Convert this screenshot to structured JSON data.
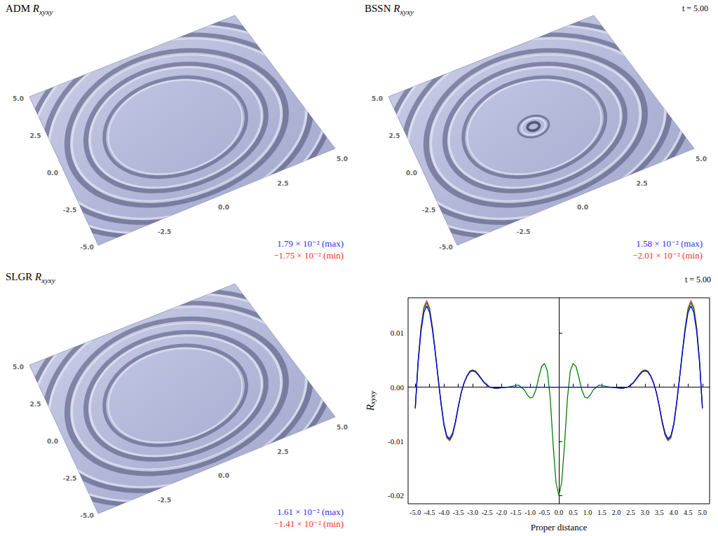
{
  "chart_data": [
    {
      "type": "surface",
      "title": "ADM Rxyxy",
      "xlim": [
        -5,
        5
      ],
      "ylim": [
        -5,
        5
      ],
      "xticks": [
        -2.5,
        {
          "value": 0,
          "label": "0.0"
        },
        2.5,
        {
          "value": 5,
          "label": "5.0"
        }
      ],
      "yticks": [
        {
          "value": 5,
          "label": "5.0"
        },
        2.5,
        {
          "value": 0,
          "label": "0.0"
        },
        -2.5,
        {
          "value": -5,
          "label": "-5.0"
        }
      ],
      "max": {
        "value": 0.0179,
        "label": "1.79 × 10⁻² (max)"
      },
      "min": {
        "value": -0.0175,
        "label": "−1.75 × 10⁻² (min)"
      }
    },
    {
      "type": "surface",
      "title": "BSSN Rxyxy",
      "annotation": "t = 5.00",
      "xlim": [
        -5,
        5
      ],
      "ylim": [
        -5,
        5
      ],
      "xticks": [
        -2.5,
        {
          "value": 0,
          "label": "0.0"
        },
        2.5,
        {
          "value": 5,
          "label": "5.0"
        }
      ],
      "yticks": [
        {
          "value": 5,
          "label": "5.0"
        },
        2.5,
        {
          "value": 0,
          "label": "0.0"
        },
        -2.5,
        {
          "value": -5,
          "label": "-5.0"
        }
      ],
      "max": {
        "value": 0.0158,
        "label": "1.58 × 10⁻² (max)"
      },
      "min": {
        "value": -0.0201,
        "label": "−2.01 × 10⁻² (min)"
      }
    },
    {
      "type": "surface",
      "title": "SLGR Rxyxy",
      "xlim": [
        -5,
        5
      ],
      "ylim": [
        -5,
        5
      ],
      "xticks": [
        -2.5,
        {
          "value": 0,
          "label": "0.0"
        },
        2.5,
        {
          "value": 5,
          "label": "5.0"
        }
      ],
      "yticks": [
        {
          "value": 5,
          "label": "5.0"
        },
        2.5,
        {
          "value": 0,
          "label": "0.0"
        },
        -2.5,
        {
          "value": -5,
          "label": "-5.0"
        }
      ],
      "max": {
        "value": 0.0161,
        "label": "1.61 × 10⁻² (max)"
      },
      "min": {
        "value": -0.0141,
        "label": "−1.41 × 10⁻² (min)"
      }
    },
    {
      "type": "line",
      "annotation": "t = 5.00",
      "xlabel": "Proper distance",
      "ylabel": "Rxyxy",
      "grid": false,
      "xlim": [
        -5.25,
        5.25
      ],
      "ylim": [
        -0.0215,
        0.0165
      ],
      "xticks": [
        {
          "value": -5,
          "label": "-5.0"
        },
        -4.5,
        {
          "value": -4,
          "label": "-4.0"
        },
        -3.5,
        {
          "value": -3,
          "label": "-3.0"
        },
        -2.5,
        {
          "value": -2,
          "label": "-2.0"
        },
        -1.5,
        {
          "value": -1,
          "label": "-1.0"
        },
        -0.5,
        {
          "value": 0,
          "label": "0.0"
        },
        0.5,
        {
          "value": 1,
          "label": "1.0"
        },
        1.5,
        {
          "value": 2,
          "label": "2.0"
        },
        2.5,
        {
          "value": 3,
          "label": "3.0"
        },
        3.5,
        {
          "value": 4,
          "label": "4.0"
        },
        4.5,
        {
          "value": 5,
          "label": "5.0"
        }
      ],
      "yticks": [
        -0.02,
        -0.01,
        {
          "value": 0,
          "label": "0.00"
        },
        0.01
      ],
      "x": [
        -5.0,
        -4.9,
        -4.8,
        -4.7,
        -4.6,
        -4.5,
        -4.4,
        -4.3,
        -4.2,
        -4.1,
        -4.0,
        -3.9,
        -3.8,
        -3.7,
        -3.6,
        -3.5,
        -3.4,
        -3.3,
        -3.2,
        -3.1,
        -3.0,
        -2.9,
        -2.8,
        -2.6,
        -2.4,
        -2.2,
        -2.0,
        -1.8,
        -1.6,
        -1.4,
        -1.2,
        -1.1,
        -1.0,
        -0.9,
        -0.8,
        -0.7,
        -0.6,
        -0.5,
        -0.4,
        -0.3,
        -0.2,
        -0.1,
        0,
        0.1,
        0.2,
        0.3,
        0.4,
        0.5,
        0.6,
        0.7,
        0.8,
        0.9,
        1.0,
        1.1,
        1.2,
        1.4,
        1.6,
        1.8,
        2.0,
        2.2,
        2.4,
        2.6,
        2.8,
        2.9,
        3.0,
        3.1,
        3.2,
        3.3,
        3.4,
        3.5,
        3.6,
        3.7,
        3.8,
        3.9,
        4.0,
        4.1,
        4.2,
        4.3,
        4.4,
        4.5,
        4.6,
        4.7,
        4.8,
        4.9,
        5.0
      ],
      "series": [
        {
          "color": "#e8432b",
          "values": [
            -0.004,
            0.005,
            0.0111,
            0.0148,
            0.016,
            0.0146,
            0.0111,
            0.0065,
            0.0015,
            -0.0032,
            -0.0071,
            -0.0094,
            -0.0099,
            -0.0089,
            -0.0066,
            -0.0037,
            -0.0011,
            0.0008,
            0.0021,
            0.003,
            0.0032,
            0.003,
            0.0024,
            0.0009,
            0,
            -0.0002,
            -0.0001,
            0,
            0,
            0,
            0,
            0,
            0,
            0,
            0,
            0,
            0,
            0,
            0,
            0,
            0,
            0,
            0,
            0,
            0,
            0,
            0,
            0,
            0,
            0,
            0,
            0,
            0,
            0,
            0,
            0,
            0,
            0,
            -0.0001,
            -0.0002,
            0,
            0.0009,
            0.0024,
            0.003,
            0.0032,
            0.003,
            0.0021,
            0.0008,
            -0.0011,
            -0.0037,
            -0.0066,
            -0.0089,
            -0.0099,
            -0.0094,
            -0.0071,
            -0.0032,
            0.0015,
            0.0065,
            0.0111,
            0.0146,
            0.016,
            0.0148,
            0.0111,
            0.005,
            -0.004
          ]
        },
        {
          "color": "#008000",
          "values": [
            -0.0039,
            0.0048,
            0.0108,
            0.0144,
            0.0156,
            0.0143,
            0.0109,
            0.0064,
            0.0015,
            -0.0031,
            -0.007,
            -0.0092,
            -0.0097,
            -0.0087,
            -0.0065,
            -0.0036,
            -0.001,
            0.0008,
            0.0021,
            0.0029,
            0.0031,
            0.0029,
            0.0023,
            0.0009,
            0,
            -0.0002,
            -0.0001,
            0,
            0.0002,
            0.0004,
            -0.0005,
            -0.0014,
            -0.002,
            -0.0018,
            -0.0005,
            0.0018,
            0.0038,
            0.0044,
            0.003,
            -0.002,
            -0.0105,
            -0.0175,
            -0.02,
            -0.0175,
            -0.0105,
            -0.002,
            0.003,
            0.0044,
            0.0038,
            0.0018,
            -0.0005,
            -0.0018,
            -0.002,
            -0.0014,
            -0.0005,
            0.0004,
            0.0002,
            0,
            -0.0001,
            -0.0002,
            0,
            0.0009,
            0.0023,
            0.0029,
            0.0031,
            0.0029,
            0.0021,
            0.0008,
            -0.001,
            -0.0036,
            -0.0065,
            -0.0087,
            -0.0097,
            -0.0092,
            -0.007,
            -0.0031,
            0.0015,
            0.0064,
            0.0109,
            0.0143,
            0.0156,
            0.0144,
            0.0108,
            0.0048,
            -0.0039
          ]
        },
        {
          "color": "#0000ff",
          "values": [
            -0.0038,
            0.0045,
            0.0103,
            0.0138,
            0.015,
            0.0138,
            0.0105,
            0.0062,
            0.0015,
            -0.003,
            -0.0068,
            -0.009,
            -0.0095,
            -0.0085,
            -0.0063,
            -0.0035,
            -0.001,
            0.0008,
            0.002,
            0.0028,
            0.003,
            0.0028,
            0.0022,
            0.0008,
            0,
            -0.0002,
            -0.0001,
            0,
            0,
            0,
            0,
            0,
            0,
            0,
            0,
            0,
            0,
            0,
            0,
            0,
            0,
            0,
            0,
            0,
            0,
            0,
            0,
            0,
            0,
            0,
            0,
            0,
            0,
            0,
            0,
            0,
            0,
            0,
            -0.0001,
            -0.0002,
            0,
            0.0008,
            0.0022,
            0.0028,
            0.003,
            0.0028,
            0.002,
            0.0008,
            -0.001,
            -0.0035,
            -0.0063,
            -0.0085,
            -0.0095,
            -0.009,
            -0.0068,
            -0.003,
            0.0015,
            0.0062,
            0.0105,
            0.0138,
            0.015,
            0.0138,
            0.0103,
            0.0045,
            -0.0038
          ]
        }
      ]
    }
  ]
}
